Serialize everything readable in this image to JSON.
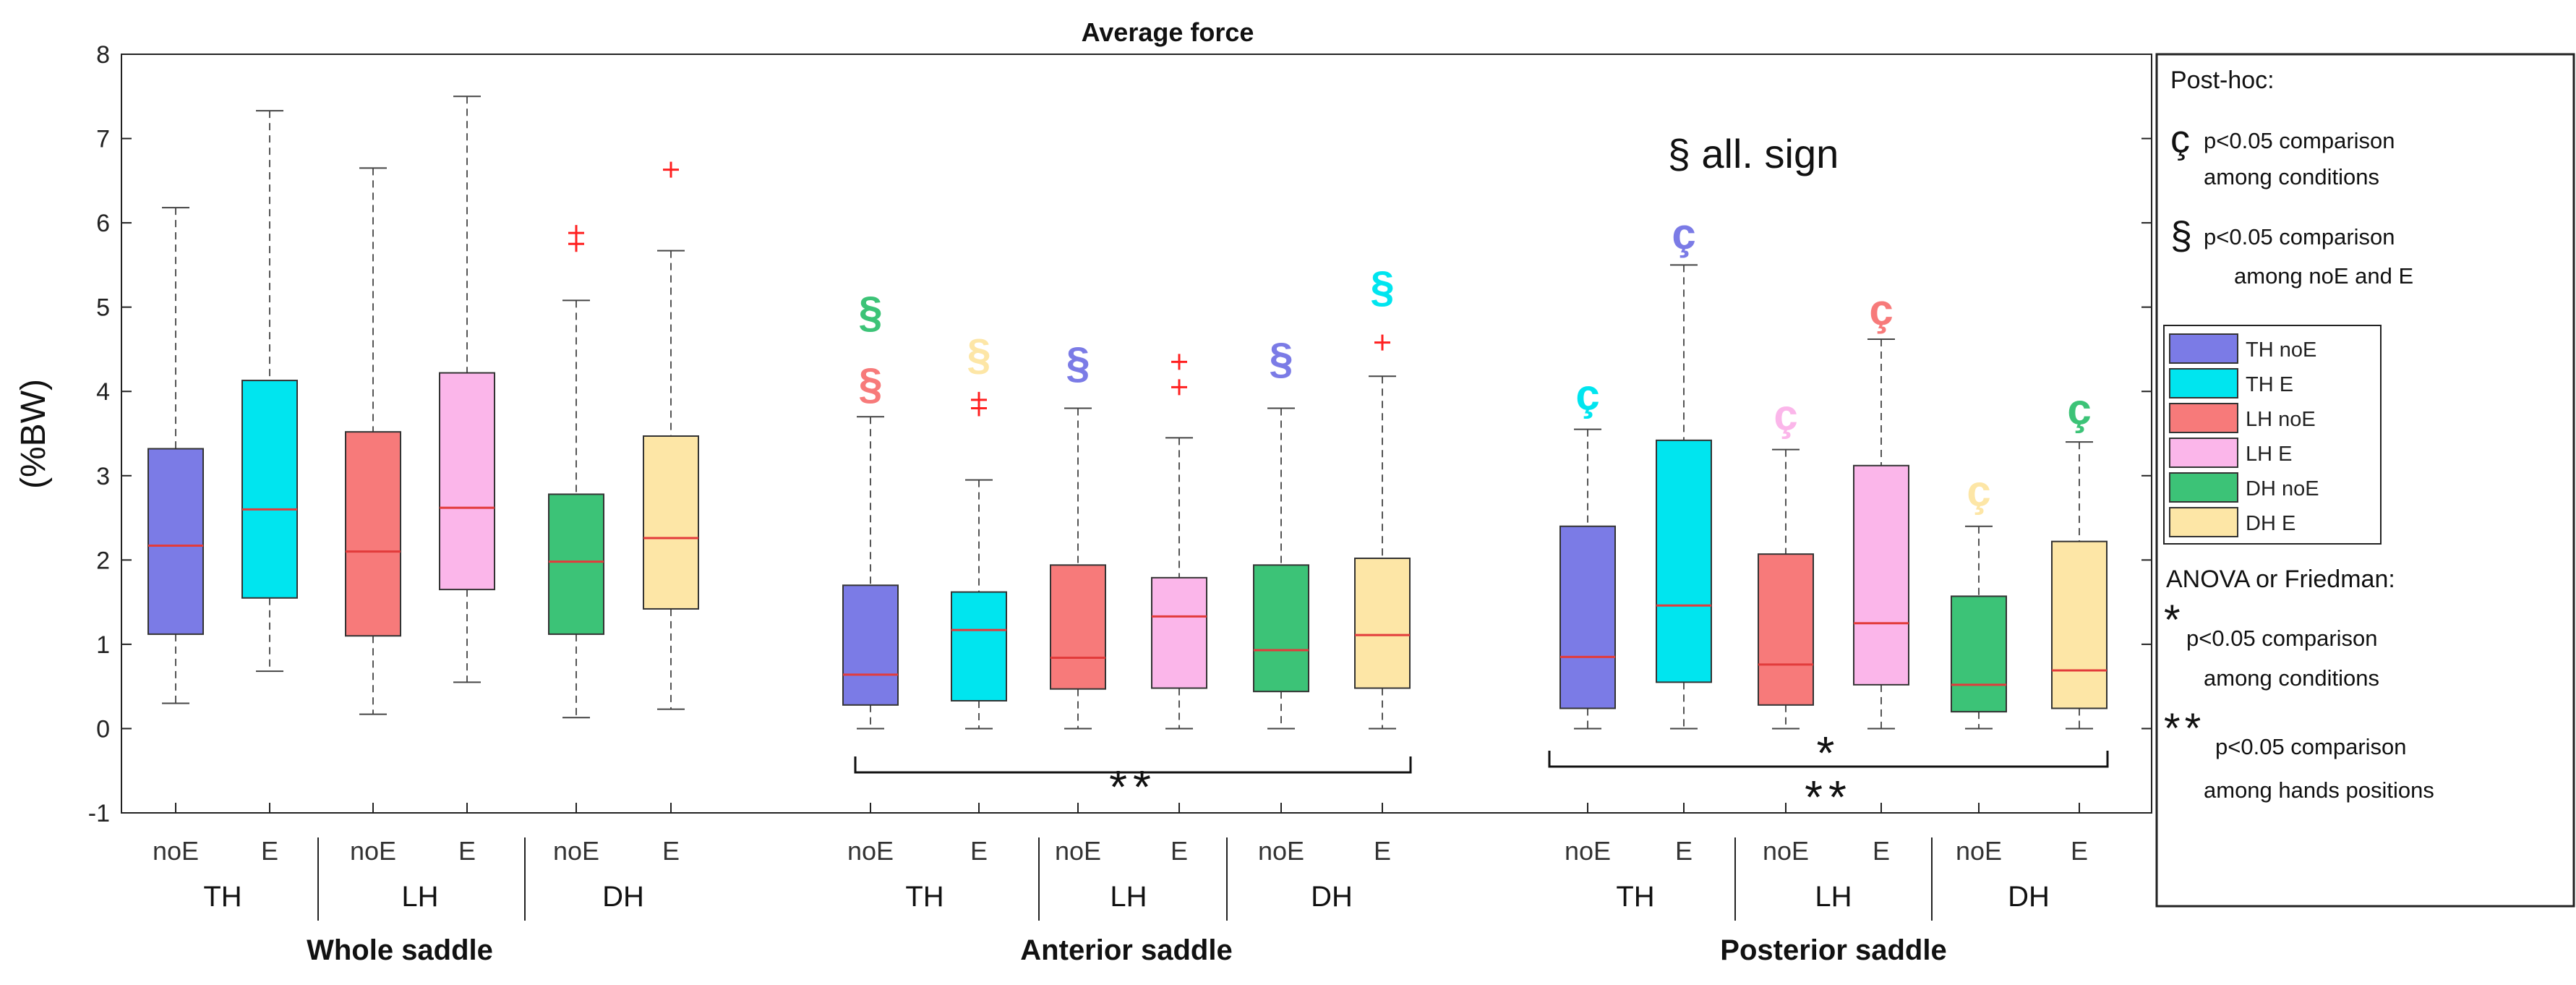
{
  "chart_data": {
    "type": "boxplot",
    "title": "Average force",
    "ylabel": "(%BW)",
    "ylim": [
      -1,
      8
    ],
    "yticks": [
      -1,
      0,
      1,
      2,
      3,
      4,
      5,
      6,
      7,
      8
    ],
    "annotation": "§ all. sign",
    "legend_title": "Post-hoc:",
    "legend_posthoc": [
      {
        "symbol": "ç",
        "line1": "p<0.05 comparison",
        "line2": "among conditions"
      },
      {
        "symbol": "§",
        "line1": "p<0.05 comparison",
        "line2": "among noE and E"
      }
    ],
    "legend_series": [
      {
        "label": "TH noE",
        "color": "#7b7be6"
      },
      {
        "label": "TH E",
        "color": "#00e5ef"
      },
      {
        "label": "LH noE",
        "color": "#f77a7a"
      },
      {
        "label": "LH E",
        "color": "#fbb6ea"
      },
      {
        "label": "DH noE",
        "color": "#3cc377"
      },
      {
        "label": "DH E",
        "color": "#fde6a6"
      }
    ],
    "legend_stats_title": "ANOVA or Friedman:",
    "legend_stats": [
      {
        "symbol": "*",
        "line1": "p<0.05 comparison",
        "line2": "among conditions"
      },
      {
        "symbol": "**",
        "line1": "p<0.05 comparison",
        "line2": "among hands positions"
      }
    ],
    "sections": [
      {
        "name": "Whole saddle",
        "hands": [
          "TH",
          "LH",
          "DH"
        ],
        "boxes": [
          {
            "cat": "noE",
            "series": 0,
            "wlo": 0.3,
            "q1": 1.12,
            "med": 2.17,
            "q3": 3.32,
            "whi": 6.18,
            "outliers": [],
            "symbols": []
          },
          {
            "cat": "E",
            "series": 1,
            "wlo": 0.68,
            "q1": 1.55,
            "med": 2.6,
            "q3": 4.13,
            "whi": 7.33,
            "outliers": [],
            "symbols": []
          },
          {
            "cat": "noE",
            "series": 2,
            "wlo": 0.17,
            "q1": 1.1,
            "med": 2.1,
            "q3": 3.52,
            "whi": 6.65,
            "outliers": [],
            "symbols": []
          },
          {
            "cat": "E",
            "series": 3,
            "wlo": 0.55,
            "q1": 1.65,
            "med": 2.62,
            "q3": 4.22,
            "whi": 7.5,
            "outliers": [],
            "symbols": []
          },
          {
            "cat": "noE",
            "series": 4,
            "wlo": 0.13,
            "q1": 1.12,
            "med": 1.98,
            "q3": 2.78,
            "whi": 5.08,
            "outliers": [
              5.75,
              5.88
            ],
            "symbols": []
          },
          {
            "cat": "E",
            "series": 5,
            "wlo": 0.23,
            "q1": 1.42,
            "med": 2.26,
            "q3": 3.47,
            "whi": 5.67,
            "outliers": [
              6.63
            ],
            "symbols": []
          }
        ],
        "brackets": []
      },
      {
        "name": "Anterior saddle",
        "hands": [
          "TH",
          "LH",
          "DH"
        ],
        "boxes": [
          {
            "cat": "noE",
            "series": 0,
            "wlo": 0.0,
            "q1": 0.28,
            "med": 0.64,
            "q3": 1.7,
            "whi": 3.7,
            "outliers": [],
            "symbols": [
              {
                "char": "§",
                "value": 4.1,
                "color": "#f77a7a"
              },
              {
                "char": "§",
                "value": 4.95,
                "color": "#3cc377"
              }
            ]
          },
          {
            "cat": "E",
            "series": 1,
            "wlo": 0.0,
            "q1": 0.33,
            "med": 1.17,
            "q3": 1.62,
            "whi": 2.95,
            "outliers": [
              3.8,
              3.9
            ],
            "symbols": [
              {
                "char": "§",
                "value": 4.45,
                "color": "#fde6a6"
              }
            ]
          },
          {
            "cat": "noE",
            "series": 2,
            "wlo": 0.0,
            "q1": 0.47,
            "med": 0.84,
            "q3": 1.94,
            "whi": 3.8,
            "outliers": [],
            "symbols": [
              {
                "char": "§",
                "value": 4.35,
                "color": "#7b7be6"
              }
            ]
          },
          {
            "cat": "E",
            "series": 3,
            "wlo": 0.0,
            "q1": 0.48,
            "med": 1.33,
            "q3": 1.79,
            "whi": 3.45,
            "outliers": [
              4.05,
              4.35
            ],
            "symbols": []
          },
          {
            "cat": "noE",
            "series": 4,
            "wlo": 0.0,
            "q1": 0.44,
            "med": 0.93,
            "q3": 1.94,
            "whi": 3.8,
            "outliers": [],
            "symbols": [
              {
                "char": "§",
                "value": 4.4,
                "color": "#7b7be6"
              }
            ]
          },
          {
            "cat": "E",
            "series": 5,
            "wlo": 0.0,
            "q1": 0.48,
            "med": 1.11,
            "q3": 2.02,
            "whi": 4.18,
            "outliers": [
              4.58
            ],
            "symbols": [
              {
                "char": "§",
                "value": 5.25,
                "color": "#00e5ef"
              }
            ]
          }
        ],
        "brackets": [
          {
            "label": "**"
          }
        ]
      },
      {
        "name": "Posterior saddle",
        "hands": [
          "TH",
          "LH",
          "DH"
        ],
        "boxes": [
          {
            "cat": "noE",
            "series": 0,
            "wlo": 0.0,
            "q1": 0.24,
            "med": 0.85,
            "q3": 2.4,
            "whi": 3.55,
            "outliers": [],
            "symbols": [
              {
                "char": "ç",
                "value": 3.97,
                "color": "#00e5ef"
              }
            ]
          },
          {
            "cat": "E",
            "series": 1,
            "wlo": 0.0,
            "q1": 0.55,
            "med": 1.46,
            "q3": 3.42,
            "whi": 5.5,
            "outliers": [],
            "symbols": [
              {
                "char": "ç",
                "value": 5.88,
                "color": "#7b7be6"
              }
            ]
          },
          {
            "cat": "noE",
            "series": 2,
            "wlo": 0.0,
            "q1": 0.28,
            "med": 0.76,
            "q3": 2.07,
            "whi": 3.31,
            "outliers": [],
            "symbols": [
              {
                "char": "ç",
                "value": 3.73,
                "color": "#fbb6ea"
              }
            ]
          },
          {
            "cat": "E",
            "series": 3,
            "wlo": 0.0,
            "q1": 0.52,
            "med": 1.25,
            "q3": 3.12,
            "whi": 4.62,
            "outliers": [],
            "symbols": [
              {
                "char": "ç",
                "value": 4.98,
                "color": "#f77a7a"
              }
            ]
          },
          {
            "cat": "noE",
            "series": 4,
            "wlo": 0.0,
            "q1": 0.2,
            "med": 0.52,
            "q3": 1.57,
            "whi": 2.4,
            "outliers": [],
            "symbols": [
              {
                "char": "ç",
                "value": 2.83,
                "color": "#fde6a6"
              }
            ]
          },
          {
            "cat": "E",
            "series": 5,
            "wlo": 0.0,
            "q1": 0.24,
            "med": 0.69,
            "q3": 2.22,
            "whi": 3.4,
            "outliers": [],
            "symbols": [
              {
                "char": "ç",
                "value": 3.8,
                "color": "#3cc377"
              }
            ]
          }
        ],
        "brackets": [
          {
            "label": "*"
          },
          {
            "label": "**"
          }
        ]
      }
    ]
  }
}
